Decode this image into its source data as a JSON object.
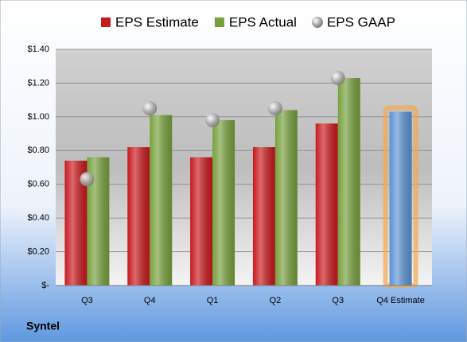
{
  "chart_data": {
    "type": "bar",
    "categories": [
      "Q3",
      "Q4",
      "Q1",
      "Q2",
      "Q3",
      "Q4 Estimate"
    ],
    "series": [
      {
        "name": "EPS Estimate",
        "color": "#c8191e",
        "colors": [
          "#c8191e",
          "#c8191e",
          "#c8191e",
          "#c8191e",
          "#c8191e",
          "#5b93d3"
        ],
        "values": [
          0.74,
          0.82,
          0.76,
          0.82,
          0.96,
          1.03
        ]
      },
      {
        "name": "EPS Actual",
        "color": "#77a03c",
        "values": [
          0.76,
          1.01,
          0.98,
          1.04,
          1.23,
          null
        ]
      },
      {
        "name": "EPS GAAP",
        "color": "#a6a6a6",
        "marker": "circle",
        "values": [
          0.63,
          1.05,
          0.98,
          1.05,
          1.23,
          null
        ]
      }
    ],
    "ylim": [
      0,
      1.4
    ],
    "yticks": [
      {
        "value": 0,
        "label": "$-"
      },
      {
        "value": 0.2,
        "label": "$0.20"
      },
      {
        "value": 0.4,
        "label": "$0.40"
      },
      {
        "value": 0.6,
        "label": "$0.60"
      },
      {
        "value": 0.8,
        "label": "$0.80"
      },
      {
        "value": 1.0,
        "label": "$1.00"
      },
      {
        "value": 1.2,
        "label": "$1.20"
      },
      {
        "value": 1.4,
        "label": "$1.40"
      }
    ],
    "grid": true,
    "company": "Syntel"
  }
}
